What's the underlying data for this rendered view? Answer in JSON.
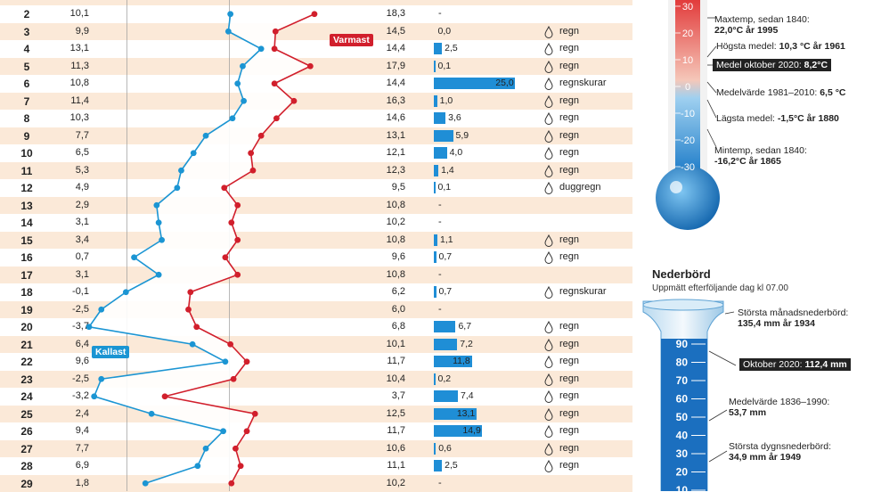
{
  "chart_data": {
    "type": "table",
    "rows": [
      {
        "day": "2",
        "min": "10,1",
        "max": "18,3",
        "precip": "-",
        "desc": ""
      },
      {
        "day": "3",
        "min": "9,9",
        "max": "14,5",
        "precip": "0,0",
        "desc": "regn"
      },
      {
        "day": "4",
        "min": "13,1",
        "max": "14,4",
        "precip": "2,5",
        "desc": "regn"
      },
      {
        "day": "5",
        "min": "11,3",
        "max": "17,9",
        "precip": "0,1",
        "desc": "regn"
      },
      {
        "day": "6",
        "min": "10,8",
        "max": "14,4",
        "precip": "25,0",
        "desc": "regnskurar"
      },
      {
        "day": "7",
        "min": "11,4",
        "max": "16,3",
        "precip": "1,0",
        "desc": "regn"
      },
      {
        "day": "8",
        "min": "10,3",
        "max": "14,6",
        "precip": "3,6",
        "desc": "regn"
      },
      {
        "day": "9",
        "min": "7,7",
        "max": "13,1",
        "precip": "5,9",
        "desc": "regn"
      },
      {
        "day": "10",
        "min": "6,5",
        "max": "12,1",
        "precip": "4,0",
        "desc": "regn"
      },
      {
        "day": "11",
        "min": "5,3",
        "max": "12,3",
        "precip": "1,4",
        "desc": "regn"
      },
      {
        "day": "12",
        "min": "4,9",
        "max": "9,5",
        "precip": "0,1",
        "desc": "duggregn"
      },
      {
        "day": "13",
        "min": "2,9",
        "max": "10,8",
        "precip": "-",
        "desc": ""
      },
      {
        "day": "14",
        "min": "3,1",
        "max": "10,2",
        "precip": "-",
        "desc": ""
      },
      {
        "day": "15",
        "min": "3,4",
        "max": "10,8",
        "precip": "1,1",
        "desc": "regn"
      },
      {
        "day": "16",
        "min": "0,7",
        "max": "9,6",
        "precip": "0,7",
        "desc": "regn"
      },
      {
        "day": "17",
        "min": "3,1",
        "max": "10,8",
        "precip": "-",
        "desc": ""
      },
      {
        "day": "18",
        "min": "-0,1",
        "max": "6,2",
        "precip": "0,7",
        "desc": "regnskurar"
      },
      {
        "day": "19",
        "min": "-2,5",
        "max": "6,0",
        "precip": "-",
        "desc": ""
      },
      {
        "day": "20",
        "min": "-3,7",
        "max": "6,8",
        "precip": "6,7",
        "desc": "regn"
      },
      {
        "day": "21",
        "min": "6,4",
        "max": "10,1",
        "precip": "7,2",
        "desc": "regn"
      },
      {
        "day": "22",
        "min": "9,6",
        "max": "11,7",
        "precip": "11,8",
        "desc": "regn"
      },
      {
        "day": "23",
        "min": "-2,5",
        "max": "10,4",
        "precip": "0,2",
        "desc": "regn"
      },
      {
        "day": "24",
        "min": "-3,2",
        "max": "3,7",
        "precip": "7,4",
        "desc": "regn"
      },
      {
        "day": "25",
        "min": "2,4",
        "max": "12,5",
        "precip": "13,1",
        "desc": "regn"
      },
      {
        "day": "26",
        "min": "9,4",
        "max": "11,7",
        "precip": "14,9",
        "desc": "regn"
      },
      {
        "day": "27",
        "min": "7,7",
        "max": "10,6",
        "precip": "0,6",
        "desc": "regn"
      },
      {
        "day": "28",
        "min": "6,9",
        "max": "11,1",
        "precip": "2,5",
        "desc": "regn"
      },
      {
        "day": "29",
        "min": "1,8",
        "max": "10,2",
        "precip": "-",
        "desc": ""
      }
    ],
    "min_values": [
      10.1,
      9.9,
      13.1,
      11.3,
      10.8,
      11.4,
      10.3,
      7.7,
      6.5,
      5.3,
      4.9,
      2.9,
      3.1,
      3.4,
      0.7,
      3.1,
      -0.1,
      -2.5,
      -3.7,
      6.4,
      9.6,
      -2.5,
      -3.2,
      2.4,
      9.4,
      7.7,
      6.9,
      1.8
    ],
    "max_values": [
      18.3,
      14.5,
      14.4,
      17.9,
      14.4,
      16.3,
      14.6,
      13.1,
      12.1,
      12.3,
      9.5,
      10.8,
      10.2,
      10.8,
      9.6,
      10.8,
      6.2,
      6.0,
      6.8,
      10.1,
      11.7,
      10.4,
      3.7,
      12.5,
      11.7,
      10.6,
      11.1,
      10.2
    ],
    "precip_values": [
      null,
      0.0,
      2.5,
      0.1,
      25.0,
      1.0,
      3.6,
      5.9,
      4.0,
      1.4,
      0.1,
      null,
      null,
      1.1,
      0.7,
      null,
      0.7,
      null,
      6.7,
      7.2,
      11.8,
      0.2,
      7.4,
      13.1,
      14.9,
      0.6,
      2.5,
      null
    ],
    "annotations": {
      "varmast": "Varmast",
      "kallast": "Kallast"
    },
    "colors": {
      "min_line": "#1b95d3",
      "max_line": "#d11f2c",
      "precip_bar": "#1f8ed6",
      "row_alt": "#fbe9d8"
    }
  },
  "thermometer": {
    "ticks": [
      "30",
      "20",
      "10",
      "0",
      "-10",
      "-20",
      "-30"
    ],
    "maxtemp_label": "Maxtemp, sedan 1840:",
    "maxtemp_value": "22,0°C år 1995",
    "hogsta_label": "Högsta medel:",
    "hogsta_value": "10,3 °C år 1961",
    "medel_oktober": "Medel oktober 2020:",
    "medel_oktober_value": "8,2°C",
    "medelvarde_label": "Medelvärde 1981–2010:",
    "medelvarde_value": "6,5 °C",
    "lagsta_label": "Lägsta medel:",
    "lagsta_value": "-1,5°C år 1880",
    "mintemp_label": "Mintemp, sedan 1840:",
    "mintemp_value": "-16,2°C år 1865"
  },
  "nederbord": {
    "title": "Nederbörd",
    "subtitle": "Uppmätt efterföljande dag kl 07.00",
    "ticks": [
      "90",
      "80",
      "70",
      "60",
      "50",
      "40",
      "30",
      "20",
      "10"
    ],
    "storsta_man_label": "Största månadsnederbörd:",
    "storsta_man_value": "135,4 mm år 1934",
    "oktober": "Oktober 2020:",
    "oktober_value": "112,4 mm",
    "medelvarde_label": "Medelvärde 1836–1990:",
    "medelvarde_value": "53,7 mm",
    "storsta_dygn_label": "Största dygnsnederbörd:",
    "storsta_dygn_value": "34,9 mm år 1949"
  }
}
